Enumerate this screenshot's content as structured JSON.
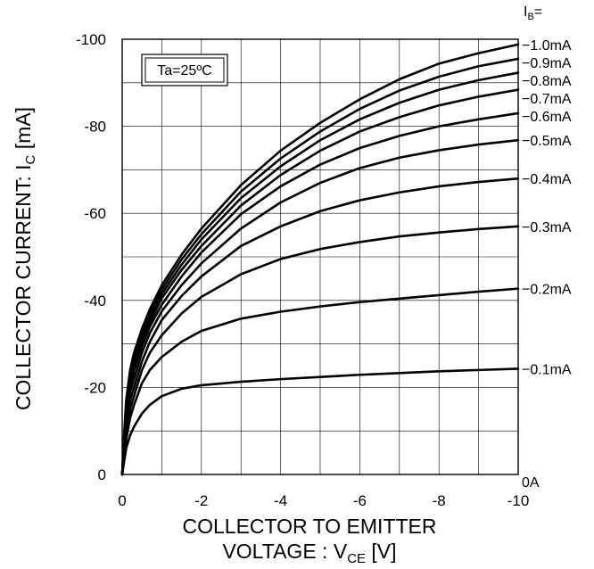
{
  "chart_data": {
    "type": "line",
    "title": "",
    "annotation": "Ta=25ºC",
    "xlabel": {
      "line1": "COLLECTOR TO EMITTER",
      "line2_prefix": "VOLTAGE : V",
      "line2_sub": "CE",
      "line2_suffix": " [V]"
    },
    "ylabel": {
      "prefix": "COLLECTOR CURRENT: I",
      "sub": "C",
      "suffix": " [mA]"
    },
    "xlim": [
      0,
      -10
    ],
    "ylim": [
      0,
      -100
    ],
    "grid": true,
    "x_ticks": [
      "0",
      "-2",
      "-4",
      "-6",
      "-8",
      "-10"
    ],
    "x_tick_values": [
      0,
      -2,
      -4,
      -6,
      -8,
      -10
    ],
    "y_ticks": [
      "0",
      "-20",
      "-40",
      "-60",
      "-80",
      "-100"
    ],
    "y_tick_values": [
      0,
      -20,
      -40,
      -60,
      -80,
      -100
    ],
    "legend_header": {
      "prefix": "I",
      "sub": "B",
      "suffix": "="
    },
    "series": [
      {
        "name": "0A",
        "x": [
          0,
          -10
        ],
        "y": [
          0,
          0
        ]
      },
      {
        "name": "−0.1mA",
        "x": [
          0,
          -0.05,
          -0.1,
          -0.2,
          -0.3,
          -0.5,
          -0.7,
          -1,
          -1.5,
          -2,
          -3,
          -4,
          -5,
          -6,
          -7,
          -8,
          -9,
          -10
        ],
        "y": [
          0,
          -3,
          -6,
          -9,
          -11,
          -14,
          -16,
          -18,
          -19.7,
          -20.5,
          -21.3,
          -21.9,
          -22.4,
          -22.9,
          -23.3,
          -23.7,
          -24,
          -24.3
        ]
      },
      {
        "name": "−0.2mA",
        "x": [
          0,
          -0.05,
          -0.1,
          -0.2,
          -0.3,
          -0.5,
          -0.7,
          -1,
          -1.5,
          -2,
          -3,
          -4,
          -5,
          -6,
          -7,
          -8,
          -9,
          -10
        ],
        "y": [
          0,
          -4,
          -8,
          -13,
          -16,
          -21,
          -24,
          -27,
          -30.5,
          -33,
          -35.8,
          -37.4,
          -38.6,
          -39.6,
          -40.4,
          -41.2,
          -42,
          -42.7
        ]
      },
      {
        "name": "−0.3mA",
        "x": [
          0,
          -0.05,
          -0.1,
          -0.2,
          -0.3,
          -0.5,
          -0.7,
          -1,
          -1.5,
          -2,
          -3,
          -4,
          -5,
          -6,
          -7,
          -8,
          -9,
          -10
        ],
        "y": [
          0,
          -5,
          -10,
          -15,
          -18,
          -24,
          -28,
          -32,
          -37,
          -40.8,
          -46,
          -49.5,
          -51.8,
          -53.4,
          -54.7,
          -55.6,
          -56.4,
          -57
        ]
      },
      {
        "name": "−0.4mA",
        "x": [
          0,
          -0.05,
          -0.1,
          -0.2,
          -0.3,
          -0.5,
          -0.7,
          -1,
          -1.5,
          -2,
          -3,
          -4,
          -5,
          -6,
          -7,
          -8,
          -9,
          -10
        ],
        "y": [
          0,
          -6,
          -11,
          -17,
          -20,
          -26,
          -30.5,
          -35.5,
          -41,
          -45.5,
          -52.5,
          -57,
          -60.5,
          -63,
          -64.8,
          -66.2,
          -67.2,
          -68
        ]
      },
      {
        "name": "−0.5mA",
        "x": [
          0,
          -0.05,
          -0.1,
          -0.2,
          -0.3,
          -0.5,
          -0.7,
          -1,
          -1.5,
          -2,
          -3,
          -4,
          -5,
          -6,
          -7,
          -8,
          -9,
          -10
        ],
        "y": [
          0,
          -7,
          -12,
          -19,
          -22,
          -28,
          -32.5,
          -37.5,
          -43.5,
          -48.5,
          -56.5,
          -62.5,
          -67,
          -70.4,
          -72.8,
          -74.5,
          -75.8,
          -76.8
        ]
      },
      {
        "name": "−0.6mA",
        "x": [
          0,
          -0.05,
          -0.1,
          -0.2,
          -0.3,
          -0.5,
          -0.7,
          -1,
          -1.5,
          -2,
          -3,
          -4,
          -5,
          -6,
          -7,
          -8,
          -9,
          -10
        ],
        "y": [
          0,
          -7.5,
          -13,
          -20,
          -24,
          -29.5,
          -34,
          -39,
          -45.5,
          -51,
          -59.8,
          -66.2,
          -71.2,
          -75,
          -77.8,
          -80,
          -81.6,
          -83
        ]
      },
      {
        "name": "−0.7mA",
        "x": [
          0,
          -0.05,
          -0.1,
          -0.2,
          -0.3,
          -0.5,
          -0.7,
          -1,
          -1.5,
          -2,
          -3,
          -4,
          -5,
          -6,
          -7,
          -8,
          -9,
          -10
        ],
        "y": [
          0,
          -8,
          -14,
          -21,
          -25,
          -30.5,
          -35,
          -40.5,
          -47,
          -52.5,
          -61.8,
          -68.8,
          -74.4,
          -78.8,
          -82.1,
          -84.8,
          -86.8,
          -88.4
        ]
      },
      {
        "name": "−0.8mA",
        "x": [
          0,
          -0.05,
          -0.1,
          -0.2,
          -0.3,
          -0.5,
          -0.7,
          -1,
          -1.5,
          -2,
          -3,
          -4,
          -5,
          -6,
          -7,
          -8,
          -9,
          -10
        ],
        "y": [
          0,
          -8.5,
          -15,
          -22,
          -26,
          -31.5,
          -36,
          -41.5,
          -48.2,
          -54,
          -63.5,
          -70.8,
          -76.8,
          -81.6,
          -85.4,
          -88.4,
          -90.6,
          -92.3
        ]
      },
      {
        "name": "−0.9mA",
        "x": [
          0,
          -0.05,
          -0.1,
          -0.2,
          -0.3,
          -0.5,
          -0.7,
          -1,
          -1.5,
          -2,
          -3,
          -4,
          -5,
          -6,
          -7,
          -8,
          -9,
          -10
        ],
        "y": [
          0,
          -9,
          -16,
          -23,
          -27,
          -32.5,
          -37,
          -42.5,
          -49.4,
          -55.2,
          -65,
          -72.6,
          -78.8,
          -84,
          -88.2,
          -91.4,
          -93.8,
          -95.5
        ]
      },
      {
        "name": "−1.0mA",
        "x": [
          0,
          -0.05,
          -0.1,
          -0.2,
          -0.3,
          -0.5,
          -0.7,
          -1,
          -1.5,
          -2,
          -3,
          -4,
          -5,
          -6,
          -7,
          -8,
          -9,
          -10
        ],
        "y": [
          0,
          -9.5,
          -17,
          -24,
          -28,
          -33.5,
          -38,
          -43.5,
          -50.5,
          -56.5,
          -66.5,
          -74.4,
          -80.8,
          -86.2,
          -90.8,
          -94.4,
          -96.8,
          -98.8
        ]
      }
    ]
  }
}
